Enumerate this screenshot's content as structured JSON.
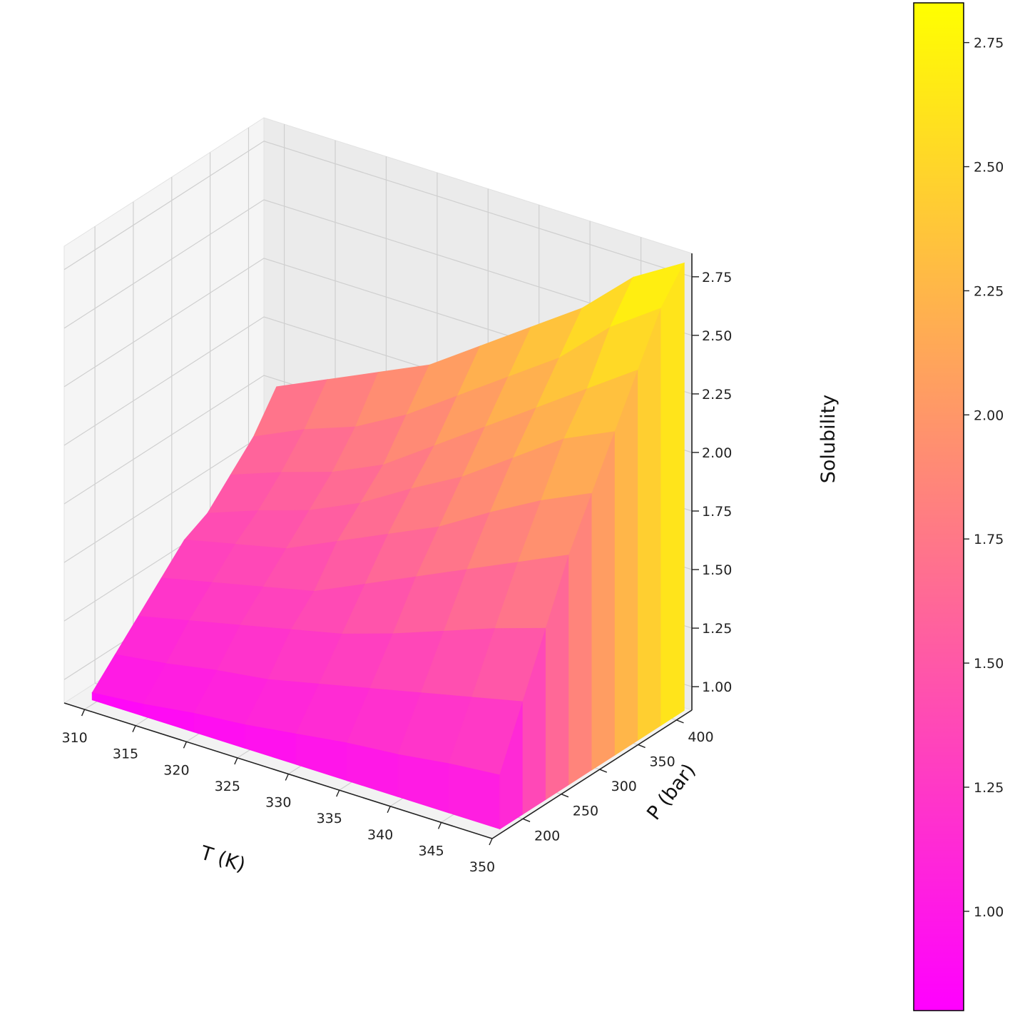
{
  "chart_data": {
    "type": "surface3d",
    "x_label": "T (K)",
    "y_label": "P (bar)",
    "z_label": "Solubility",
    "x_ticks": [
      310,
      315,
      320,
      325,
      330,
      335,
      340,
      345,
      350
    ],
    "y_ticks": [
      200,
      250,
      300,
      350,
      400
    ],
    "z_ticks": [
      "1.00",
      "1.25",
      "1.50",
      "1.75",
      "2.00",
      "2.25",
      "2.50",
      "2.75"
    ],
    "xlim": [
      308,
      350
    ],
    "ylim": [
      160,
      420
    ],
    "zlim": [
      0.9,
      2.85
    ],
    "colormap": "spring",
    "colormap_colors": [
      "#ff00ff",
      "#ffff00"
    ],
    "grid": true,
    "colorbar": {
      "range": [
        0.8,
        2.83
      ],
      "ticks": [
        "1.00",
        "1.25",
        "1.50",
        "1.75",
        "2.00",
        "2.25",
        "2.50",
        "2.75"
      ]
    },
    "surface": {
      "T": [
        310,
        315,
        320,
        325,
        330,
        335,
        340,
        345,
        350
      ],
      "P": [
        170,
        200,
        230,
        260,
        290,
        320,
        350,
        380,
        410
      ],
      "values": [
        [
          0.95,
          1.05,
          1.15,
          1.25,
          1.35,
          1.4,
          1.5,
          1.6,
          1.75
        ],
        [
          0.97,
          1.08,
          1.2,
          1.3,
          1.4,
          1.48,
          1.58,
          1.7,
          1.85
        ],
        [
          1.0,
          1.12,
          1.25,
          1.35,
          1.45,
          1.55,
          1.65,
          1.78,
          1.95
        ],
        [
          1.02,
          1.15,
          1.3,
          1.4,
          1.55,
          1.65,
          1.75,
          1.9,
          2.05
        ],
        [
          1.05,
          1.2,
          1.35,
          1.5,
          1.65,
          1.78,
          1.9,
          2.05,
          2.2
        ],
        [
          1.08,
          1.25,
          1.42,
          1.6,
          1.75,
          1.9,
          2.05,
          2.2,
          2.35
        ],
        [
          1.1,
          1.3,
          1.5,
          1.7,
          1.88,
          2.05,
          2.2,
          2.35,
          2.5
        ],
        [
          1.13,
          1.35,
          1.58,
          1.8,
          2.0,
          2.2,
          2.35,
          2.55,
          2.7
        ],
        [
          1.15,
          1.4,
          1.65,
          1.9,
          2.1,
          2.3,
          2.5,
          2.7,
          2.83
        ]
      ]
    }
  }
}
